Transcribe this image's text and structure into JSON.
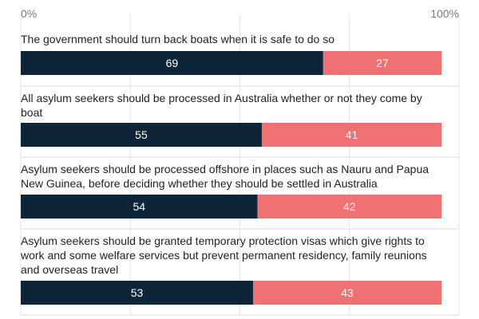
{
  "chart_data": {
    "type": "bar",
    "orientation": "horizontal",
    "stacked": true,
    "xlim": [
      0,
      100
    ],
    "x_ticks": [
      {
        "value": 0,
        "label": "0%"
      },
      {
        "value": 100,
        "label": "100%"
      }
    ],
    "grid": true,
    "legend": "none",
    "categories": [
      [
        "The government should turn back boats when it is safe to do so"
      ],
      [
        "All asylum seekers should be processed in Australia whether or not they come by",
        "boat"
      ],
      [
        "Asylum seekers should be processed offshore in places such as Nauru and Papua",
        "New Guinea, before deciding whether they should be settled in Australia"
      ],
      [
        "Asylum seekers should be granted temporary protection visas which give rights to",
        "work and some welfare services but prevent permanent residency, family reunions",
        "and overseas travel"
      ]
    ],
    "series": [
      {
        "values": [
          69,
          55,
          54,
          53
        ],
        "color": "#0d2537"
      },
      {
        "values": [
          27,
          41,
          42,
          43
        ],
        "color": "#f07173"
      }
    ]
  }
}
